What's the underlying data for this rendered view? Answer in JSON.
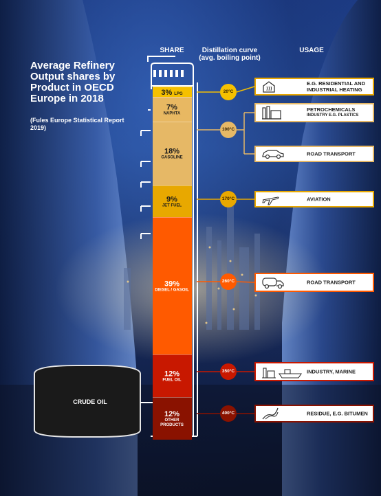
{
  "title": "Average Refinery Output shares by Product in OECD Europe in 2018",
  "subtitle": "(Fules Europe Statistical Report 2019)",
  "headers": {
    "share": "SHARE",
    "distillation": "Distillation curve",
    "distillation_sub": "(avg. boiling point)",
    "usage": "USAGE"
  },
  "crude_oil_label": "CRUDE OIL",
  "column": {
    "segments": [
      {
        "pct": "3%",
        "name": "LPG",
        "share": 3,
        "color": "#f5c000",
        "dark": true
      },
      {
        "pct": "7%",
        "name": "NAPHTA",
        "share": 7,
        "color": "#e8b862",
        "dark": true
      },
      {
        "pct": "18%",
        "name": "GASOLINE",
        "share": 18,
        "color": "#e6b866",
        "dark": true
      },
      {
        "pct": "9%",
        "name": "JET FUEL",
        "share": 9,
        "color": "#e8a800",
        "dark": true
      },
      {
        "pct": "39%",
        "name": "DIESEL / GASOIL",
        "share": 39,
        "color": "#ff5a00",
        "dark": false
      },
      {
        "pct": "12%",
        "name": "FUEL OIL",
        "share": 12,
        "color": "#c81800",
        "dark": false
      },
      {
        "pct": "12%",
        "name": "OTHER PRODUCTS",
        "share": 12,
        "color": "#8a1200",
        "dark": false
      }
    ]
  },
  "temperatures": [
    {
      "label": "20°C",
      "color": "#f5c000"
    },
    {
      "label": "100°C",
      "color": "#e6b866"
    },
    {
      "label": "170°C",
      "color": "#e8a800"
    },
    {
      "label": "260°C",
      "color": "#ff5a00"
    },
    {
      "label": "350°C",
      "color": "#c81800"
    },
    {
      "label": "400°C",
      "color": "#8a1200"
    }
  ],
  "usages": [
    {
      "label": "E.G. RESIDENTIAL AND",
      "label2": "INDUSTRIAL HEATING",
      "icon": "house-icon",
      "border": "#e8a600"
    },
    {
      "label": "PETROCHEMICALS",
      "label2": "INDUSTRY E.G. PLASTICS",
      "icon": "factory-icon",
      "border": "#e6b866"
    },
    {
      "label": "ROAD TRANSPORT",
      "label2": "",
      "icon": "car-icon",
      "border": "#e6b866"
    },
    {
      "label": "AVIATION",
      "label2": "",
      "icon": "airplane-icon",
      "border": "#e8a800"
    },
    {
      "label": "ROAD TRANSPORT",
      "label2": "",
      "icon": "truck-icon",
      "border": "#ff5a00"
    },
    {
      "label": "INDUSTRY, MARINE",
      "label2": "",
      "icon": "ship-icon",
      "border": "#c81800"
    },
    {
      "label": "RESIDUE, E.G. BITUMEN",
      "label2": "",
      "icon": "road-icon",
      "border": "#8a1200"
    }
  ]
}
